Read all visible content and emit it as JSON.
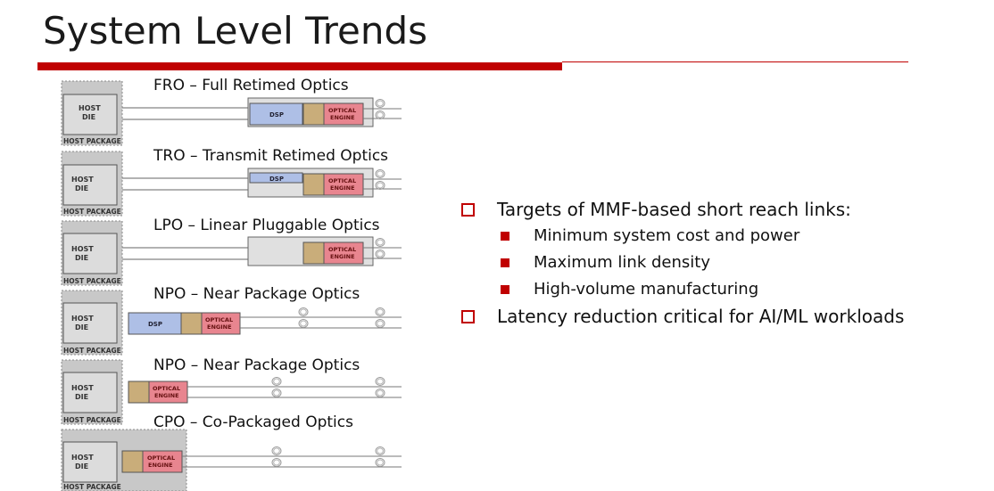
{
  "slide": {
    "title": "System Level Trends"
  },
  "labels": {
    "host_die_1": "HOST",
    "host_die_2": "DIE",
    "host_package": "HOST PACKAGE",
    "dsp": "DSP",
    "optical_1": "OPTICAL",
    "optical_2": "ENGINE"
  },
  "rows": [
    {
      "title": "FRO – Full Retimed Optics"
    },
    {
      "title": "TRO – Transmit Retimed Optics"
    },
    {
      "title": "LPO – Linear Pluggable Optics"
    },
    {
      "title": "NPO – Near Package Optics"
    },
    {
      "title": "NPO – Near Package Optics"
    },
    {
      "title": "CPO – Co-Packaged Optics"
    }
  ],
  "bullets": [
    {
      "text": "Targets of MMF-based short reach links:",
      "sub": [
        "Minimum system cost and power",
        "Maximum link density",
        "High-volume manufacturing"
      ]
    },
    {
      "text": "Latency reduction critical for AI/ML workloads",
      "sub": []
    }
  ],
  "colors": {
    "accent": "#c00000",
    "dsp": "#aebfe6",
    "optical_engine": "#e8858f",
    "tan": "#c9ad7a",
    "host_package": "#c8c8c8",
    "host_die": "#dcdcdc",
    "module": "#e0e0e0"
  }
}
